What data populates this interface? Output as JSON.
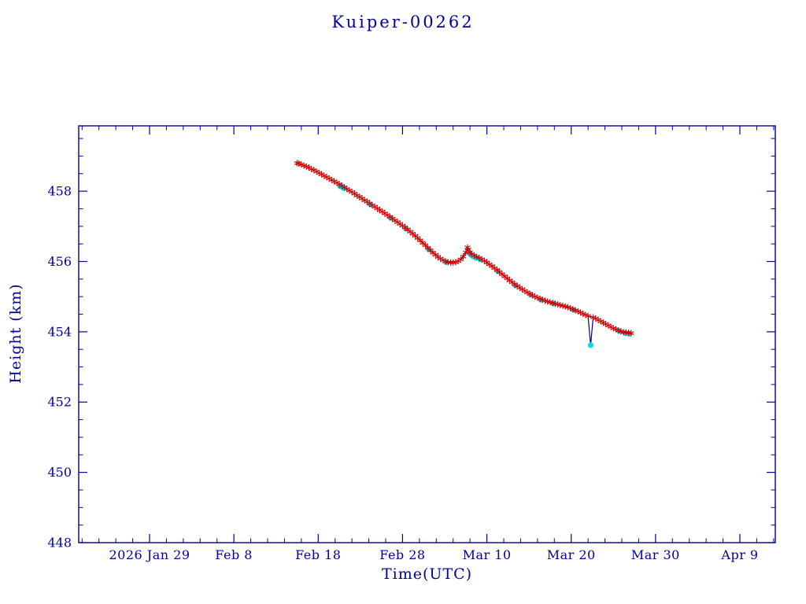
{
  "chart_data": {
    "type": "line",
    "title": "Kuiper-00262",
    "xlabel": "Time(UTC)",
    "ylabel": "Height (km)",
    "x_axis": {
      "tick_labels": [
        "2026 Jan 29",
        "Feb 8",
        "Feb 18",
        "Feb 28",
        "Mar 10",
        "Mar 20",
        "Mar 30",
        "Apr 9"
      ],
      "tick_days": [
        0,
        10,
        20,
        30,
        40,
        50,
        60,
        70
      ],
      "range_days": [
        -8.4,
        74.2
      ],
      "minor_step_days": 2
    },
    "y_axis": {
      "ticks": [
        448,
        450,
        452,
        454,
        456,
        458
      ],
      "range": [
        448,
        459.86
      ],
      "minor_step": 0.5
    },
    "colors": {
      "axis": "#000099",
      "text": "#000099",
      "line": "#000080",
      "primary_marker": "#d40000",
      "secondary_marker": "#00dce8",
      "background": "#ffffff"
    },
    "legend": null,
    "grid": false,
    "series": [
      {
        "name": "height-primary",
        "marker": "asterisk",
        "color": "#d40000",
        "points": [
          [
            17.5,
            458.8
          ],
          [
            17.7,
            458.79
          ],
          [
            18.0,
            458.76
          ],
          [
            18.3,
            458.73
          ],
          [
            18.6,
            458.7
          ],
          [
            18.9,
            458.67
          ],
          [
            19.2,
            458.63
          ],
          [
            19.5,
            458.6
          ],
          [
            19.8,
            458.56
          ],
          [
            20.1,
            458.52
          ],
          [
            20.4,
            458.48
          ],
          [
            20.7,
            458.44
          ],
          [
            21.0,
            458.4
          ],
          [
            21.3,
            458.36
          ],
          [
            21.6,
            458.32
          ],
          [
            21.9,
            458.28
          ],
          [
            22.2,
            458.24
          ],
          [
            22.5,
            458.2
          ],
          [
            22.8,
            458.15
          ],
          [
            23.1,
            458.11
          ],
          [
            23.4,
            458.06
          ],
          [
            23.7,
            458.02
          ],
          [
            24.0,
            457.98
          ],
          [
            24.3,
            457.93
          ],
          [
            24.6,
            457.88
          ],
          [
            24.9,
            457.84
          ],
          [
            25.2,
            457.79
          ],
          [
            25.5,
            457.74
          ],
          [
            25.8,
            457.7
          ],
          [
            26.1,
            457.65
          ],
          [
            26.4,
            457.6
          ],
          [
            26.7,
            457.56
          ],
          [
            27.0,
            457.51
          ],
          [
            27.3,
            457.46
          ],
          [
            27.6,
            457.42
          ],
          [
            27.9,
            457.37
          ],
          [
            28.2,
            457.32
          ],
          [
            28.5,
            457.27
          ],
          [
            28.8,
            457.22
          ],
          [
            29.1,
            457.17
          ],
          [
            29.4,
            457.12
          ],
          [
            29.7,
            457.07
          ],
          [
            30.0,
            457.02
          ],
          [
            30.3,
            456.97
          ],
          [
            30.6,
            456.91
          ],
          [
            30.9,
            456.85
          ],
          [
            31.2,
            456.79
          ],
          [
            31.5,
            456.73
          ],
          [
            31.8,
            456.67
          ],
          [
            32.1,
            456.6
          ],
          [
            32.4,
            456.53
          ],
          [
            32.7,
            456.46
          ],
          [
            33.0,
            456.39
          ],
          [
            33.3,
            456.32
          ],
          [
            33.6,
            456.25
          ],
          [
            33.9,
            456.19
          ],
          [
            34.2,
            456.13
          ],
          [
            34.5,
            456.08
          ],
          [
            34.8,
            456.04
          ],
          [
            35.1,
            456.0
          ],
          [
            35.4,
            455.98
          ],
          [
            35.7,
            455.97
          ],
          [
            36.0,
            455.97
          ],
          [
            36.3,
            455.98
          ],
          [
            36.6,
            456.01
          ],
          [
            36.9,
            456.06
          ],
          [
            37.2,
            456.14
          ],
          [
            37.5,
            456.26
          ],
          [
            37.7,
            456.4
          ],
          [
            37.8,
            456.34
          ],
          [
            38.0,
            456.26
          ],
          [
            38.2,
            456.21
          ],
          [
            38.5,
            456.17
          ],
          [
            38.8,
            456.13
          ],
          [
            39.1,
            456.1
          ],
          [
            39.4,
            456.06
          ],
          [
            39.7,
            456.02
          ],
          [
            40.0,
            455.97
          ],
          [
            40.3,
            455.92
          ],
          [
            40.6,
            455.87
          ],
          [
            40.9,
            455.81
          ],
          [
            41.2,
            455.76
          ],
          [
            41.5,
            455.7
          ],
          [
            41.8,
            455.64
          ],
          [
            42.1,
            455.58
          ],
          [
            42.4,
            455.52
          ],
          [
            42.7,
            455.46
          ],
          [
            43.0,
            455.41
          ],
          [
            43.3,
            455.35
          ],
          [
            43.6,
            455.3
          ],
          [
            43.9,
            455.25
          ],
          [
            44.2,
            455.21
          ],
          [
            44.5,
            455.16
          ],
          [
            44.8,
            455.12
          ],
          [
            45.1,
            455.08
          ],
          [
            45.4,
            455.04
          ],
          [
            45.7,
            455.0
          ],
          [
            46.0,
            454.97
          ],
          [
            46.3,
            454.94
          ],
          [
            46.6,
            454.91
          ],
          [
            46.9,
            454.88
          ],
          [
            47.2,
            454.86
          ],
          [
            47.5,
            454.84
          ],
          [
            47.8,
            454.82
          ],
          [
            48.1,
            454.8
          ],
          [
            48.4,
            454.78
          ],
          [
            48.7,
            454.76
          ],
          [
            49.0,
            454.74
          ],
          [
            49.3,
            454.72
          ],
          [
            49.6,
            454.7
          ],
          [
            49.9,
            454.67
          ],
          [
            50.2,
            454.64
          ],
          [
            50.5,
            454.61
          ],
          [
            50.8,
            454.58
          ],
          [
            51.1,
            454.55
          ],
          [
            51.4,
            454.51
          ],
          [
            51.7,
            454.48
          ],
          [
            52.0,
            454.45
          ],
          [
            52.6,
            454.41
          ],
          [
            52.9,
            454.38
          ],
          [
            53.2,
            454.34
          ],
          [
            53.5,
            454.3
          ],
          [
            53.8,
            454.26
          ],
          [
            54.1,
            454.22
          ],
          [
            54.4,
            454.18
          ],
          [
            54.7,
            454.14
          ],
          [
            55.0,
            454.1
          ],
          [
            55.3,
            454.07
          ],
          [
            55.6,
            454.04
          ],
          [
            55.9,
            454.01
          ],
          [
            56.2,
            453.99
          ],
          [
            56.5,
            453.98
          ],
          [
            56.8,
            453.97
          ],
          [
            57.1,
            453.96
          ]
        ]
      },
      {
        "name": "height-secondary",
        "marker": "dot",
        "color": "#00dce8",
        "points": [
          [
            22.6,
            458.14
          ],
          [
            23.0,
            458.09
          ],
          [
            26.2,
            457.62
          ],
          [
            28.6,
            457.24
          ],
          [
            30.4,
            456.93
          ],
          [
            33.1,
            456.35
          ],
          [
            35.2,
            455.98
          ],
          [
            37.9,
            456.24
          ],
          [
            38.15,
            456.18
          ],
          [
            38.4,
            456.14
          ],
          [
            38.7,
            456.1
          ],
          [
            39.2,
            456.06
          ],
          [
            41.3,
            455.72
          ],
          [
            43.4,
            455.32
          ],
          [
            45.2,
            455.05
          ],
          [
            46.4,
            454.91
          ],
          [
            47.9,
            454.8
          ],
          [
            50.3,
            454.62
          ],
          [
            52.3,
            453.62
          ],
          [
            55.7,
            454.02
          ],
          [
            56.4,
            453.96
          ],
          [
            56.9,
            453.94
          ]
        ]
      },
      {
        "name": "dip-line",
        "marker": "none",
        "color": "#000080",
        "points": [
          [
            52.0,
            454.45
          ],
          [
            52.3,
            453.62
          ],
          [
            52.6,
            454.41
          ]
        ]
      }
    ]
  }
}
